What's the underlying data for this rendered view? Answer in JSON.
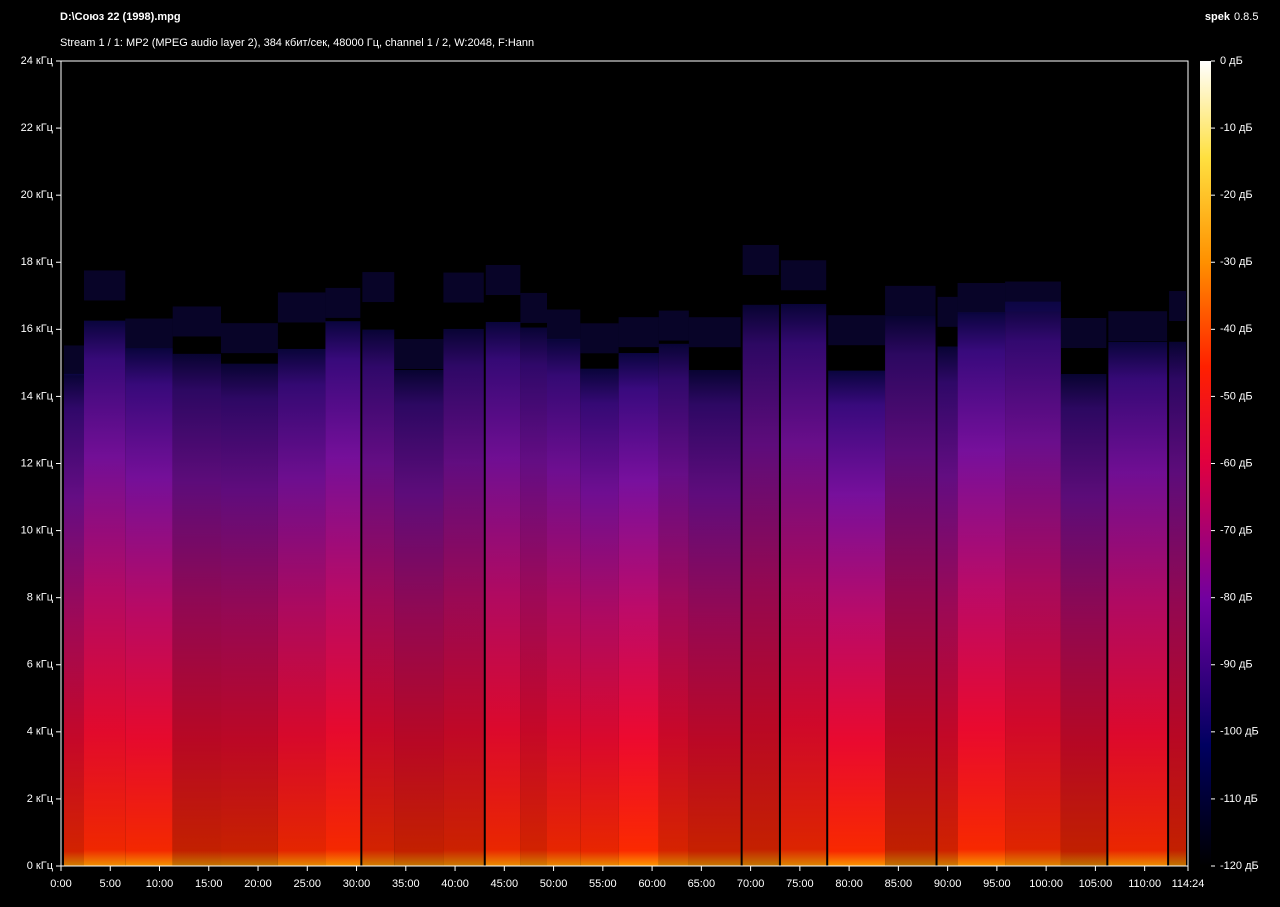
{
  "header": {
    "file": "D:\\Союз 22 (1998).mpg",
    "stream": "Stream 1 / 1: MP2 (MPEG audio layer 2), 384 кбит/сек, 48000 Гц, channel 1 / 2, W:2048, F:Hann",
    "app": "spek",
    "version": "0.8.5"
  },
  "time_axis": {
    "range": [
      0,
      6864
    ],
    "ticks": [
      {
        "value": 0,
        "label": "0:00"
      },
      {
        "value": 300,
        "label": "5:00"
      },
      {
        "value": 600,
        "label": "10:00"
      },
      {
        "value": 900,
        "label": "15:00"
      },
      {
        "value": 1200,
        "label": "20:00"
      },
      {
        "value": 1500,
        "label": "25:00"
      },
      {
        "value": 1800,
        "label": "30:00"
      },
      {
        "value": 2100,
        "label": "35:00"
      },
      {
        "value": 2400,
        "label": "40:00"
      },
      {
        "value": 2700,
        "label": "45:00"
      },
      {
        "value": 3000,
        "label": "50:00"
      },
      {
        "value": 3300,
        "label": "55:00"
      },
      {
        "value": 3600,
        "label": "60:00"
      },
      {
        "value": 3900,
        "label": "65:00"
      },
      {
        "value": 4200,
        "label": "70:00"
      },
      {
        "value": 4500,
        "label": "75:00"
      },
      {
        "value": 4800,
        "label": "80:00"
      },
      {
        "value": 5100,
        "label": "85:00"
      },
      {
        "value": 5400,
        "label": "90:00"
      },
      {
        "value": 5700,
        "label": "95:00"
      },
      {
        "value": 6000,
        "label": "100:00"
      },
      {
        "value": 6300,
        "label": "105:00"
      },
      {
        "value": 6600,
        "label": "110:00"
      },
      {
        "value": 6864,
        "label": "114:24"
      }
    ]
  },
  "frequency_axis": {
    "range": [
      0,
      24
    ],
    "ticks": [
      {
        "value": 0,
        "label": "0 кГц"
      },
      {
        "value": 2,
        "label": "2 кГц"
      },
      {
        "value": 4,
        "label": "4 кГц"
      },
      {
        "value": 6,
        "label": "6 кГц"
      },
      {
        "value": 8,
        "label": "8 кГц"
      },
      {
        "value": 10,
        "label": "10 кГц"
      },
      {
        "value": 12,
        "label": "12 кГц"
      },
      {
        "value": 14,
        "label": "14 кГц"
      },
      {
        "value": 16,
        "label": "16 кГц"
      },
      {
        "value": 18,
        "label": "18 кГц"
      },
      {
        "value": 20,
        "label": "20 кГц"
      },
      {
        "value": 22,
        "label": "22 кГц"
      },
      {
        "value": 24,
        "label": "24 кГц"
      }
    ]
  },
  "level_axis": {
    "range": [
      -120,
      0
    ],
    "ticks": [
      {
        "value": 0,
        "label": "0 дБ"
      },
      {
        "value": -10,
        "label": "-10 дБ"
      },
      {
        "value": -20,
        "label": "-20 дБ"
      },
      {
        "value": -30,
        "label": "-30 дБ"
      },
      {
        "value": -40,
        "label": "-40 дБ"
      },
      {
        "value": -50,
        "label": "-50 дБ"
      },
      {
        "value": -60,
        "label": "-60 дБ"
      },
      {
        "value": -70,
        "label": "-70 дБ"
      },
      {
        "value": -80,
        "label": "-80 дБ"
      },
      {
        "value": -90,
        "label": "-90 дБ"
      },
      {
        "value": -100,
        "label": "-100 дБ"
      },
      {
        "value": -110,
        "label": "-110 дБ"
      },
      {
        "value": -120,
        "label": "-120 дБ"
      }
    ]
  }
}
